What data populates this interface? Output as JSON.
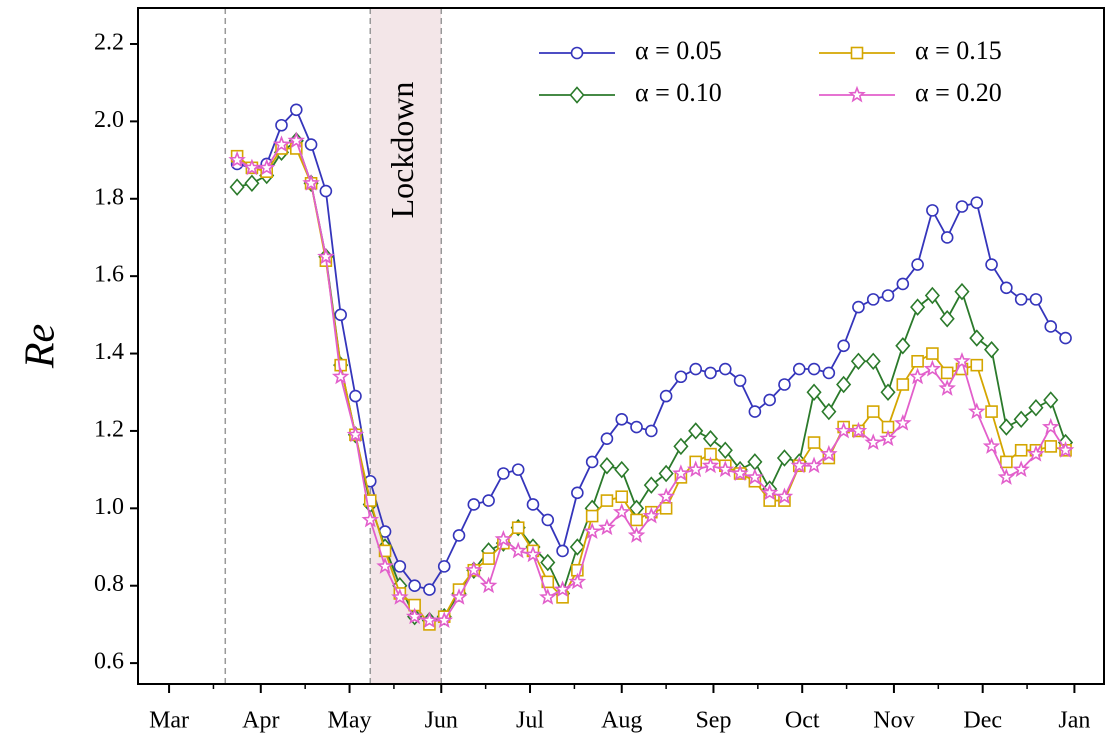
{
  "chart_data": {
    "type": "line",
    "y_label": "Re",
    "x": [
      23,
      28,
      33,
      38,
      43,
      48,
      53,
      58,
      63,
      68,
      73,
      78,
      83,
      88,
      93,
      98,
      103,
      108,
      113,
      118,
      123,
      128,
      133,
      138,
      143,
      148,
      153,
      158,
      163,
      168,
      173,
      178,
      183,
      188,
      193,
      198,
      203,
      208,
      213,
      218,
      223,
      228,
      233,
      238,
      243,
      248,
      253,
      258,
      263,
      268,
      273,
      278,
      283,
      288,
      293,
      298,
      303
    ],
    "series": [
      {
        "name": "α = 0.05",
        "color": "#3535bb",
        "marker": "circle",
        "values": [
          1.89,
          1.88,
          1.89,
          1.99,
          2.03,
          1.94,
          1.82,
          1.5,
          1.29,
          1.07,
          0.94,
          0.85,
          0.8,
          0.79,
          0.85,
          0.93,
          1.01,
          1.02,
          1.09,
          1.1,
          1.01,
          0.97,
          0.89,
          1.04,
          1.12,
          1.18,
          1.23,
          1.21,
          1.2,
          1.29,
          1.34,
          1.36,
          1.35,
          1.36,
          1.33,
          1.25,
          1.28,
          1.32,
          1.36,
          1.36,
          1.35,
          1.42,
          1.52,
          1.54,
          1.55,
          1.58,
          1.63,
          1.77,
          1.7,
          1.78,
          1.79,
          1.63,
          1.57,
          1.54,
          1.54,
          1.47,
          1.44
        ]
      },
      {
        "name": "α = 0.10",
        "color": "#2b7a2b",
        "marker": "diamond",
        "values": [
          1.83,
          1.84,
          1.86,
          1.92,
          1.95,
          1.84,
          1.65,
          1.37,
          1.19,
          1.01,
          0.9,
          0.8,
          0.72,
          0.71,
          0.72,
          0.78,
          0.84,
          0.89,
          0.91,
          0.95,
          0.9,
          0.86,
          0.78,
          0.9,
          1.0,
          1.11,
          1.1,
          1.0,
          1.06,
          1.09,
          1.16,
          1.2,
          1.18,
          1.15,
          1.1,
          1.12,
          1.05,
          1.13,
          1.12,
          1.3,
          1.25,
          1.32,
          1.38,
          1.38,
          1.3,
          1.42,
          1.52,
          1.55,
          1.49,
          1.56,
          1.44,
          1.41,
          1.21,
          1.23,
          1.26,
          1.28,
          1.17
        ]
      },
      {
        "name": "α = 0.15",
        "color": "#d4a600",
        "marker": "square",
        "values": [
          1.91,
          1.88,
          1.87,
          1.93,
          1.93,
          1.84,
          1.64,
          1.37,
          1.19,
          1.02,
          0.89,
          0.78,
          0.75,
          0.7,
          0.72,
          0.79,
          0.84,
          0.87,
          0.91,
          0.95,
          0.89,
          0.81,
          0.77,
          0.84,
          0.98,
          1.02,
          1.03,
          0.97,
          0.99,
          1.0,
          1.08,
          1.12,
          1.14,
          1.11,
          1.09,
          1.07,
          1.02,
          1.02,
          1.11,
          1.17,
          1.13,
          1.21,
          1.2,
          1.25,
          1.21,
          1.32,
          1.38,
          1.4,
          1.35,
          1.36,
          1.37,
          1.25,
          1.12,
          1.15,
          1.15,
          1.16,
          1.15
        ]
      },
      {
        "name": "α = 0.20",
        "color": "#e25fcb",
        "marker": "star",
        "values": [
          1.9,
          1.88,
          1.88,
          1.94,
          1.95,
          1.84,
          1.65,
          1.34,
          1.19,
          0.97,
          0.85,
          0.77,
          0.72,
          0.71,
          0.71,
          0.77,
          0.84,
          0.8,
          0.92,
          0.89,
          0.88,
          0.77,
          0.79,
          0.81,
          0.94,
          0.95,
          0.99,
          0.93,
          0.98,
          1.03,
          1.09,
          1.1,
          1.11,
          1.1,
          1.09,
          1.08,
          1.04,
          1.03,
          1.11,
          1.11,
          1.14,
          1.2,
          1.2,
          1.17,
          1.18,
          1.22,
          1.34,
          1.36,
          1.31,
          1.38,
          1.25,
          1.16,
          1.08,
          1.1,
          1.14,
          1.21,
          1.15
        ]
      }
    ],
    "xlim": [
      -10.5,
      316
    ],
    "xticks": [
      {
        "value": 0,
        "label": "Mar"
      },
      {
        "value": 31,
        "label": "Apr"
      },
      {
        "value": 61,
        "label": "May"
      },
      {
        "value": 92,
        "label": "Jun"
      },
      {
        "value": 122,
        "label": "Jul"
      },
      {
        "value": 153,
        "label": "Aug"
      },
      {
        "value": 184,
        "label": "Sep"
      },
      {
        "value": 214,
        "label": "Oct"
      },
      {
        "value": 245,
        "label": "Nov"
      },
      {
        "value": 275,
        "label": "Dec"
      },
      {
        "value": 306,
        "label": "Jan"
      }
    ],
    "xminorticks": [
      15,
      46,
      76,
      107,
      137,
      168,
      199,
      229,
      260,
      290
    ],
    "ylim": [
      0.546,
      2.293
    ],
    "yticks": [
      0.6,
      0.8,
      {
        "value": 1,
        "label": "1.0"
      },
      1.2,
      1.4,
      1.6,
      1.8,
      {
        "value": 2,
        "label": "2.0"
      },
      2.2
    ],
    "vlines": [
      19,
      68,
      92
    ],
    "lockdown": {
      "label": "Lockdown",
      "start": 68,
      "end": 92
    },
    "legend": "upper right",
    "legend_columns": 2
  }
}
